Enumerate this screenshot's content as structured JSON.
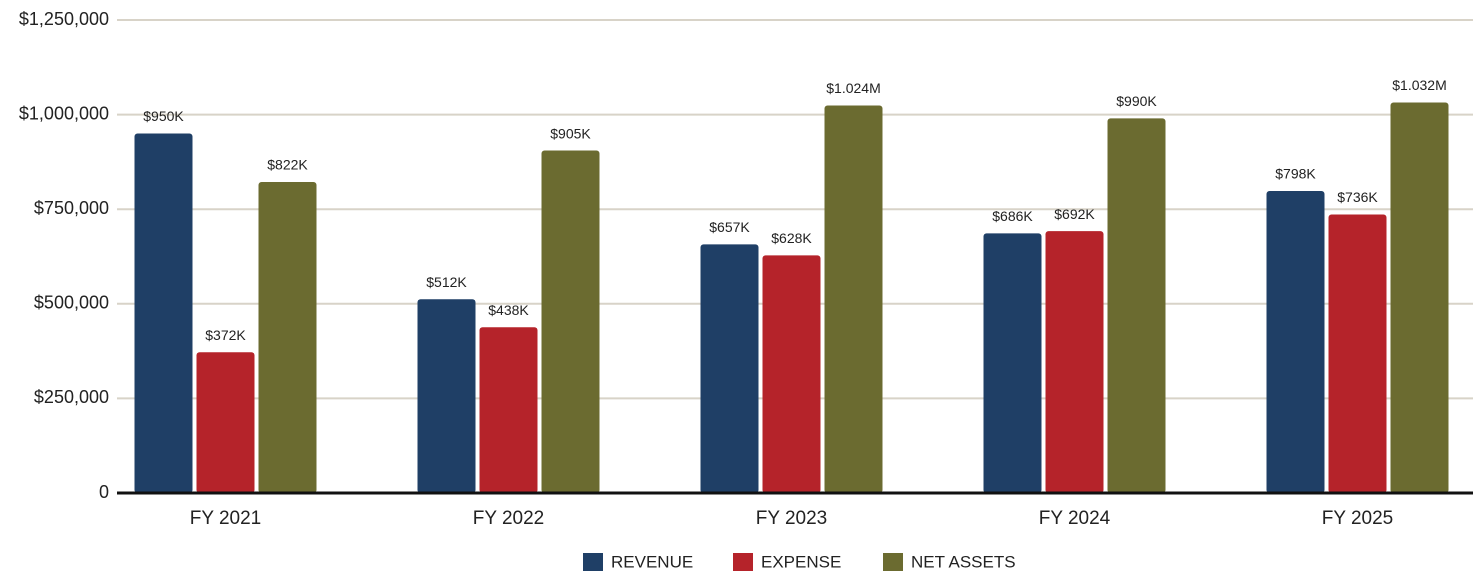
{
  "chart_data": {
    "type": "bar",
    "categories": [
      "FY 2021",
      "FY 2022",
      "FY 2023",
      "FY 2024",
      "FY 2025"
    ],
    "series": [
      {
        "name": "REVENUE",
        "color": "#1f3f66",
        "values": [
          950000,
          512000,
          657000,
          686000,
          798000
        ],
        "value_labels": [
          "$950K",
          "$512K",
          "$657K",
          "$686K",
          "$798K"
        ]
      },
      {
        "name": "EXPENSE",
        "color": "#b5232a",
        "values": [
          372000,
          438000,
          628000,
          692000,
          736000
        ],
        "value_labels": [
          "$372K",
          "$438K",
          "$628K",
          "$692K",
          "$736K"
        ]
      },
      {
        "name": "NET ASSETS",
        "color": "#6b6b30",
        "values": [
          822000,
          905000,
          1024000,
          990000,
          1032000
        ],
        "value_labels": [
          "$822K",
          "$905K",
          "$1.024M",
          "$990K",
          "$1.032M"
        ]
      }
    ],
    "ylim": [
      0,
      1250000
    ],
    "yticks": [
      0,
      {
        "value": 250000,
        "label": "$250,000"
      },
      {
        "value": 500000,
        "label": "$500,000"
      },
      {
        "value": 750000,
        "label": "$750,000"
      },
      {
        "value": 1000000,
        "label": "$1,000,000"
      },
      {
        "value": 1250000,
        "label": "$1,250,000"
      }
    ],
    "grid": true
  }
}
